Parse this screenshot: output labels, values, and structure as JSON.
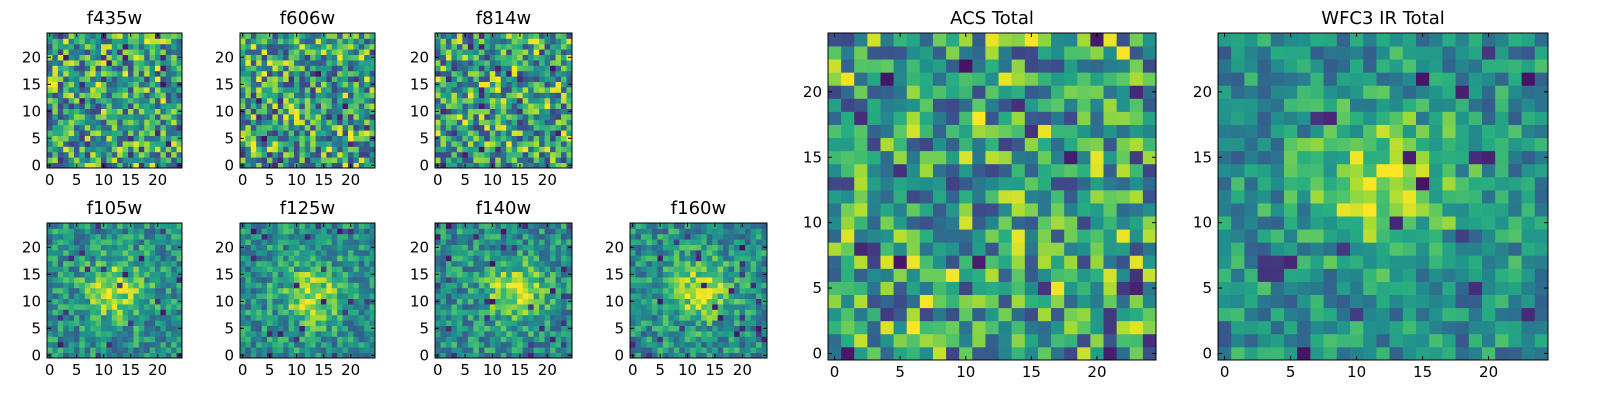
{
  "chart_data": {
    "type": "heatmap",
    "colormap": "viridis",
    "panels": [
      {
        "id": "f435w",
        "title": "f435w",
        "grid_size": 25,
        "xlim": [
          -0.5,
          24.5
        ],
        "ylim": [
          -0.5,
          24.5
        ],
        "xticks": [
          0,
          5,
          10,
          15,
          20
        ],
        "yticks": [
          0,
          5,
          10,
          15,
          20
        ],
        "pattern": "noise",
        "seed": 11
      },
      {
        "id": "f606w",
        "title": "f606w",
        "grid_size": 25,
        "xlim": [
          -0.5,
          24.5
        ],
        "ylim": [
          -0.5,
          24.5
        ],
        "xticks": [
          0,
          5,
          10,
          15,
          20
        ],
        "yticks": [
          0,
          5,
          10,
          15,
          20
        ],
        "pattern": "noise",
        "seed": 23
      },
      {
        "id": "f814w",
        "title": "f814w",
        "grid_size": 25,
        "xlim": [
          -0.5,
          24.5
        ],
        "ylim": [
          -0.5,
          24.5
        ],
        "xticks": [
          0,
          5,
          10,
          15,
          20
        ],
        "yticks": [
          0,
          5,
          10,
          15,
          20
        ],
        "pattern": "noise",
        "seed": 37
      },
      {
        "id": "f105w",
        "title": "f105w",
        "grid_size": 25,
        "xlim": [
          -0.5,
          24.5
        ],
        "ylim": [
          -0.5,
          24.5
        ],
        "xticks": [
          0,
          5,
          10,
          15,
          20
        ],
        "yticks": [
          0,
          5,
          10,
          15,
          20
        ],
        "pattern": "source",
        "seed": 41,
        "source_center": [
          12,
          12
        ]
      },
      {
        "id": "f125w",
        "title": "f125w",
        "grid_size": 25,
        "xlim": [
          -0.5,
          24.5
        ],
        "ylim": [
          -0.5,
          24.5
        ],
        "xticks": [
          0,
          5,
          10,
          15,
          20
        ],
        "yticks": [
          0,
          5,
          10,
          15,
          20
        ],
        "pattern": "source",
        "seed": 53,
        "source_center": [
          13,
          11
        ]
      },
      {
        "id": "f140w",
        "title": "f140w",
        "grid_size": 25,
        "xlim": [
          -0.5,
          24.5
        ],
        "ylim": [
          -0.5,
          24.5
        ],
        "xticks": [
          0,
          5,
          10,
          15,
          20
        ],
        "yticks": [
          0,
          5,
          10,
          15,
          20
        ],
        "pattern": "source",
        "seed": 67,
        "source_center": [
          14,
          12
        ]
      },
      {
        "id": "f160w",
        "title": "f160w",
        "grid_size": 25,
        "xlim": [
          -0.5,
          24.5
        ],
        "ylim": [
          -0.5,
          24.5
        ],
        "xticks": [
          0,
          5,
          10,
          15,
          20
        ],
        "yticks": [
          0,
          5,
          10,
          15,
          20
        ],
        "pattern": "source",
        "seed": 79,
        "source_center": [
          12,
          12
        ]
      },
      {
        "id": "acs-total",
        "title": "ACS Total",
        "grid_size": 25,
        "xlim": [
          -0.5,
          24.5
        ],
        "ylim": [
          -0.5,
          24.5
        ],
        "xticks": [
          0,
          5,
          10,
          15,
          20
        ],
        "yticks": [
          0,
          5,
          10,
          15,
          20
        ],
        "pattern": "noise",
        "seed": 97
      },
      {
        "id": "wfc3-ir-total",
        "title": "WFC3 IR Total",
        "grid_size": 25,
        "xlim": [
          -0.5,
          24.5
        ],
        "ylim": [
          -0.5,
          24.5
        ],
        "xticks": [
          0,
          5,
          10,
          15,
          20
        ],
        "yticks": [
          0,
          5,
          10,
          15,
          20
        ],
        "pattern": "source",
        "seed": 101,
        "source_center": [
          12,
          13
        ]
      }
    ]
  }
}
